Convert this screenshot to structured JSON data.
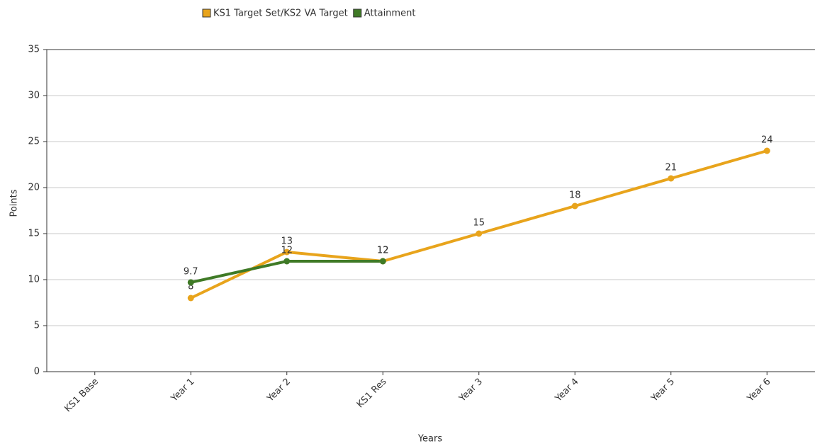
{
  "chart_data": {
    "type": "line",
    "categories": [
      "KS1 Base",
      "Year 1",
      "Year 2",
      "KS1 Res",
      "Year 3",
      "Year 4",
      "Year 5",
      "Year 6"
    ],
    "series": [
      {
        "name": "KS1 Target Set/KS2 VA Target",
        "color": "#e8a41c",
        "values": [
          null,
          8,
          13,
          12,
          15,
          18,
          21,
          24
        ]
      },
      {
        "name": "Attainment",
        "color": "#3f7a26",
        "values": [
          null,
          9.7,
          12,
          12,
          null,
          null,
          null,
          null
        ]
      }
    ],
    "x_label": "Years",
    "y_label": "Points",
    "ylim": [
      0,
      35
    ],
    "yticks": [
      0,
      5,
      10,
      15,
      20,
      25,
      30,
      35
    ],
    "grid": true,
    "legend": "top"
  }
}
